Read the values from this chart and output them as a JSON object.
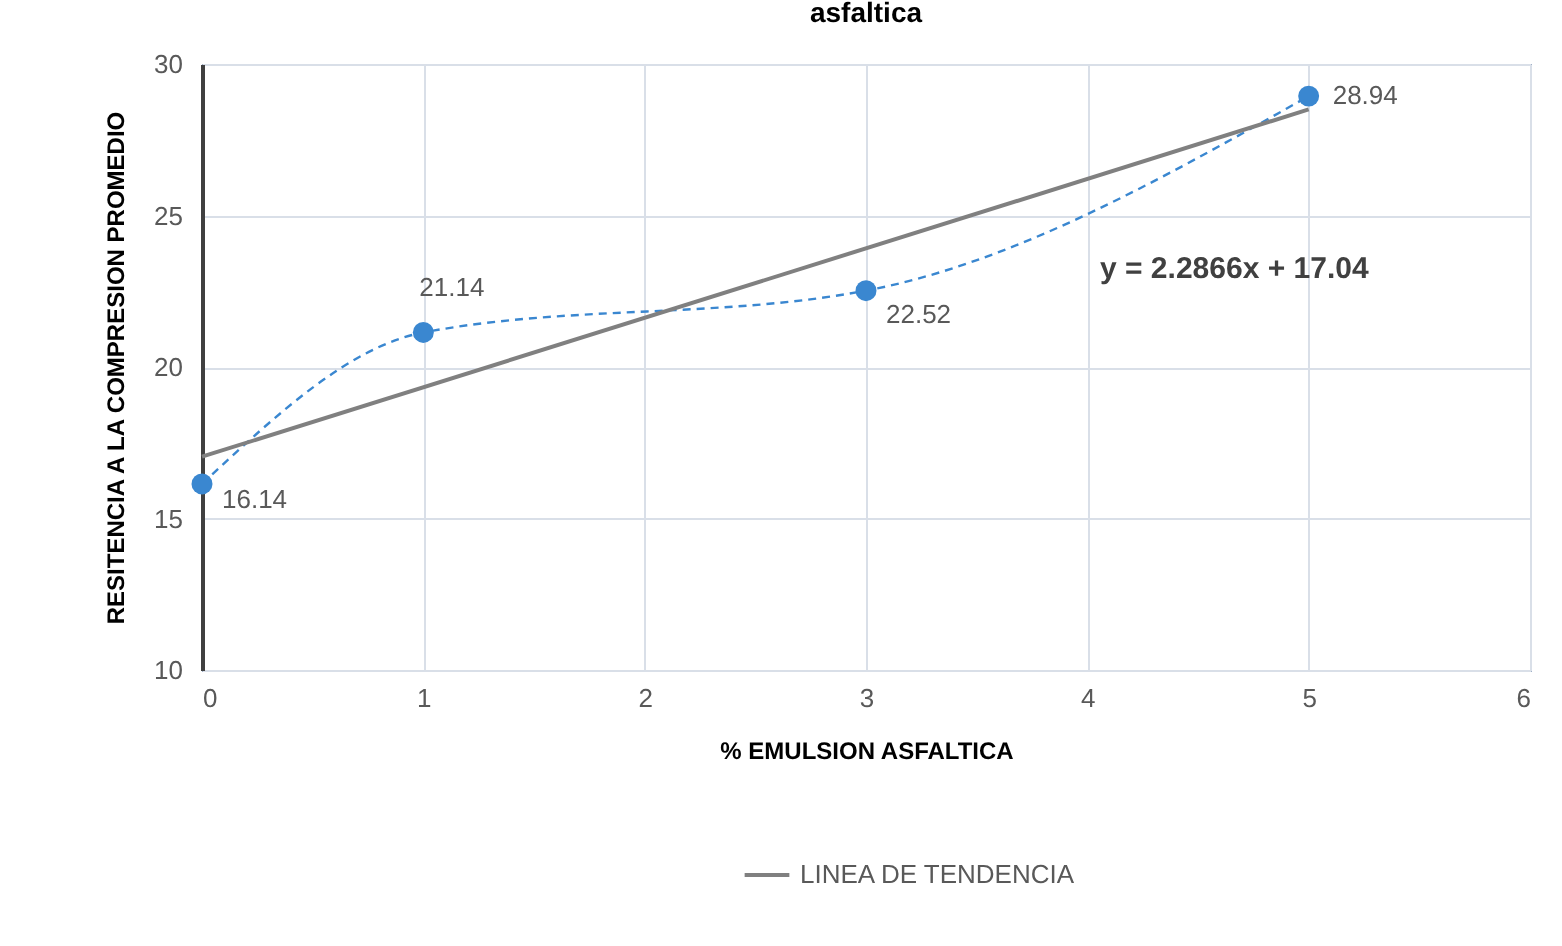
{
  "chart_data": {
    "type": "line",
    "title": "asfaltica",
    "xlabel": "% EMULSION ASFALTICA",
    "ylabel": "RESITENCIA A LA COMPRESION  PROMEDIO",
    "xlim": [
      0,
      6
    ],
    "xticks": [
      0,
      1,
      2,
      3,
      4,
      5,
      6
    ],
    "ylim": [
      10,
      30
    ],
    "yticks": [
      10,
      15,
      20,
      25,
      30
    ],
    "grid": true,
    "legend": "bottom",
    "annotations": [
      "y = 2.2866x + 17.04"
    ],
    "series": [
      {
        "color": "#3a87d0",
        "x": [
          0,
          1,
          3,
          5
        ],
        "values": [
          16.14,
          21.14,
          22.52,
          28.94
        ],
        "value_labels": [
          "16.14",
          "21.14",
          "22.52",
          "28.94"
        ],
        "line_style": "dashed",
        "marker": "circle"
      },
      {
        "name": "LINEA DE TENDENCIA",
        "type": "line",
        "color": "#808080",
        "x": [
          0,
          5
        ],
        "values": [
          17.04,
          28.5
        ],
        "line_style": "solid",
        "marker": "none"
      }
    ]
  }
}
